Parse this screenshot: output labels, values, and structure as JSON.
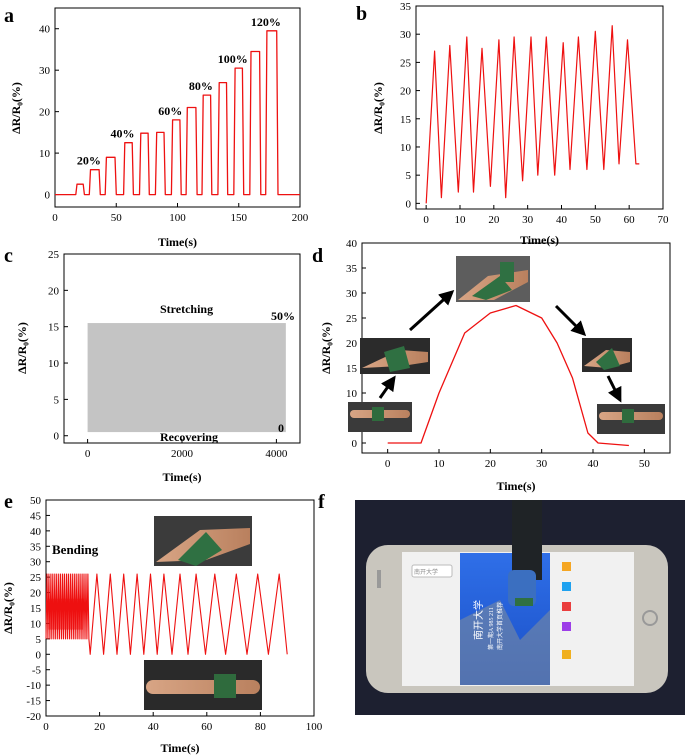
{
  "chart_data": [
    {
      "panel": "a",
      "type": "line",
      "xlabel": "Time(s)",
      "ylabel": "ΔR/R₀(%)",
      "xlim": [
        0,
        200
      ],
      "ylim": [
        -3,
        45
      ],
      "xticks": [
        0,
        50,
        100,
        150,
        200
      ],
      "yticks": [
        0,
        10,
        20,
        30,
        40
      ],
      "color": "#ee1111",
      "annotations": [
        "20%",
        "40%",
        "60%",
        "80%",
        "100%",
        "120%"
      ],
      "cycles": [
        {
          "start": 17,
          "end": 24,
          "peak": 2.5
        },
        {
          "start": 28,
          "end": 37,
          "peak": 6
        },
        {
          "start": 41,
          "end": 50,
          "peak": 9
        },
        {
          "start": 56,
          "end": 64,
          "peak": 12.5
        },
        {
          "start": 69,
          "end": 77,
          "peak": 14.8
        },
        {
          "start": 82,
          "end": 90,
          "peak": 15
        },
        {
          "start": 95,
          "end": 103,
          "peak": 18
        },
        {
          "start": 107,
          "end": 116,
          "peak": 21
        },
        {
          "start": 120,
          "end": 128,
          "peak": 24
        },
        {
          "start": 133,
          "end": 141,
          "peak": 27
        },
        {
          "start": 146,
          "end": 154,
          "peak": 30.5
        },
        {
          "start": 159,
          "end": 168,
          "peak": 34.5
        },
        {
          "start": 172,
          "end": 182,
          "peak": 39.5
        }
      ],
      "end_time": 200
    },
    {
      "panel": "b",
      "type": "line",
      "xlabel": "Time(s)",
      "ylabel": "ΔR/R₀(%)",
      "xlim": [
        -3,
        70
      ],
      "ylim": [
        -1,
        35
      ],
      "xticks": [
        0,
        10,
        20,
        30,
        40,
        50,
        60,
        70
      ],
      "yticks": [
        0,
        5,
        10,
        15,
        20,
        25,
        30,
        35
      ],
      "color": "#ee1111",
      "peaks": [
        {
          "x": 2.5,
          "y": 27
        },
        {
          "x": 7,
          "y": 28
        },
        {
          "x": 12,
          "y": 29.5
        },
        {
          "x": 16.5,
          "y": 27.5
        },
        {
          "x": 21.5,
          "y": 29
        },
        {
          "x": 26,
          "y": 29.5
        },
        {
          "x": 31,
          "y": 29.5
        },
        {
          "x": 35.5,
          "y": 29.5
        },
        {
          "x": 40.5,
          "y": 28.5
        },
        {
          "x": 45,
          "y": 29.5
        },
        {
          "x": 50,
          "y": 30.5
        },
        {
          "x": 55,
          "y": 31.5
        },
        {
          "x": 59.5,
          "y": 29
        }
      ],
      "valleys": [
        {
          "x": 0,
          "y": 0
        },
        {
          "x": 4.5,
          "y": 1
        },
        {
          "x": 9.5,
          "y": 2
        },
        {
          "x": 14,
          "y": 2
        },
        {
          "x": 19,
          "y": 3
        },
        {
          "x": 23.5,
          "y": 1
        },
        {
          "x": 28.5,
          "y": 4
        },
        {
          "x": 33,
          "y": 5
        },
        {
          "x": 38,
          "y": 5
        },
        {
          "x": 42.5,
          "y": 6
        },
        {
          "x": 47.5,
          "y": 6
        },
        {
          "x": 52.5,
          "y": 6
        },
        {
          "x": 57,
          "y": 7
        },
        {
          "x": 62,
          "y": 7
        },
        {
          "x": 63,
          "y": 7
        }
      ]
    },
    {
      "panel": "c",
      "type": "area",
      "xlabel": "Time(s)",
      "ylabel": "ΔR/R₀(%)",
      "xlim": [
        -500,
        4500
      ],
      "ylim": [
        -1,
        25
      ],
      "xticks": [
        0,
        2000,
        4000
      ],
      "yticks": [
        0,
        5,
        10,
        15,
        20,
        25
      ],
      "fill": "#c4c4c4",
      "band": {
        "x_start": 0,
        "x_end": 4200,
        "top": 15.5,
        "bottom": 0.5
      },
      "annotations": [
        "Stretching",
        "Recovering",
        "50%",
        "0"
      ]
    },
    {
      "panel": "d",
      "type": "line",
      "xlabel": "Time(s)",
      "ylabel": "ΔR/R₀(%)",
      "xlim": [
        -5,
        55
      ],
      "ylim": [
        -2,
        40
      ],
      "xticks": [
        0,
        10,
        20,
        30,
        40,
        50
      ],
      "yticks": [
        0,
        5,
        10,
        15,
        20,
        25,
        30,
        35,
        40
      ],
      "color": "#ee1111",
      "x": [
        0,
        6.5,
        10,
        15,
        20,
        25,
        30,
        33,
        36,
        39,
        41,
        47
      ],
      "y": [
        0,
        0,
        10,
        22,
        26,
        27.5,
        25,
        20,
        13,
        2,
        0,
        -0.5
      ]
    },
    {
      "panel": "e",
      "type": "line",
      "xlabel": "Time(s)",
      "ylabel": "ΔR/R₀(%)",
      "xlim": [
        0,
        100
      ],
      "ylim": [
        -20,
        50
      ],
      "xticks": [
        0,
        20,
        40,
        60,
        80,
        100
      ],
      "yticks": [
        -20,
        -15,
        -10,
        -5,
        0,
        5,
        10,
        15,
        20,
        25,
        30,
        35,
        40,
        45,
        50
      ],
      "color": "#ee1111",
      "annotations": [
        "Bending"
      ],
      "fast_segment": {
        "x_start": 0,
        "x_end": 16,
        "cycles": 22,
        "top": 26,
        "bottom": 0
      },
      "slow_peaks": [
        19,
        24,
        29,
        34,
        39,
        44,
        50,
        56,
        63,
        71,
        79,
        87
      ],
      "slow_valleys": [
        16.5,
        21.5,
        26.5,
        31.5,
        36.5,
        41.5,
        47,
        53,
        59.5,
        67,
        75,
        83,
        90
      ],
      "slow_top": 26,
      "slow_bottom": 0
    }
  ],
  "panels": {
    "a": "a",
    "b": "b",
    "c": "c",
    "d": "d",
    "e": "e",
    "f": "f"
  },
  "photo_f": {
    "bar_title": "南开大学",
    "bar_sub": "第一期A 985 211",
    "bar_sub2": "南开大学首页推荐",
    "search_placeholder": "南开大学"
  },
  "colors": {
    "line": "#ee1111",
    "band": "#c4c4c4",
    "photo_bg": "#1d2030"
  }
}
